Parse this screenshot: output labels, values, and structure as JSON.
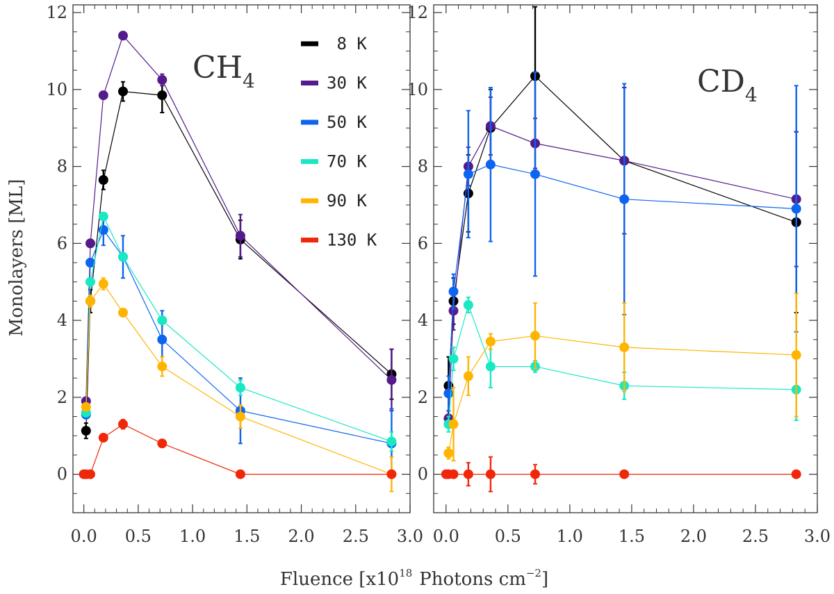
{
  "chart_data": {
    "type": "line",
    "xlabel": "Fluence [x10",
    "xlabel_exponent": "18",
    "xlabel_unit": "Photons cm",
    "xlabel_unit_exponent": "−2",
    "xlabel_end": "]",
    "ylabel": "Monolayers [ML]",
    "xlim": [
      -0.1,
      3.0
    ],
    "ylim": [
      -1,
      12.2
    ],
    "x_ticks": [
      "0.0",
      "0.5",
      "1.0",
      "1.5",
      "2.0",
      "2.5",
      "3.0"
    ],
    "x_tick_values": [
      0,
      0.5,
      1.0,
      1.5,
      2.0,
      2.5,
      3.0
    ],
    "y_ticks": [
      "0",
      "2",
      "4",
      "6",
      "8",
      "10",
      "12"
    ],
    "y_tick_values": [
      0,
      2,
      4,
      6,
      8,
      10,
      12
    ],
    "legend": [
      {
        "label": " 8 K",
        "color": "#000000"
      },
      {
        "label": "30 K",
        "color": "#551a8b"
      },
      {
        "label": "50 K",
        "color": "#0c64f0"
      },
      {
        "label": "70 K",
        "color": "#19e8c3"
      },
      {
        "label": "90 K",
        "color": "#ffb400"
      },
      {
        "label": "130 K",
        "color": "#f0280a"
      }
    ],
    "panels": [
      {
        "title": "CH",
        "title_sub": "4",
        "series": [
          {
            "name": "8 K",
            "color": "#000000",
            "x": [
              0.02,
              0.06,
              0.18,
              0.36,
              0.72,
              1.44,
              2.83
            ],
            "y": [
              1.13,
              4.5,
              7.65,
              9.95,
              9.85,
              6.1,
              2.6
            ],
            "err": [
              0.2,
              0.3,
              0.25,
              0.25,
              0.45,
              0.5,
              0.65
            ]
          },
          {
            "name": "30 K",
            "color": "#551a8b",
            "x": [
              0.02,
              0.06,
              0.18,
              0.36,
              0.72,
              1.44,
              2.83
            ],
            "y": [
              1.9,
              6.0,
              9.85,
              11.4,
              10.25,
              6.2,
              2.45
            ],
            "err": [
              0.1,
              0.1,
              0.1,
              0.1,
              0.15,
              0.55,
              0.8
            ]
          },
          {
            "name": "50 K",
            "color": "#0c64f0",
            "x": [
              0.02,
              0.06,
              0.18,
              0.36,
              0.72,
              1.44,
              2.83
            ],
            "y": [
              1.55,
              5.5,
              6.35,
              5.65,
              3.5,
              1.65,
              0.8
            ],
            "err": [
              0.1,
              0.1,
              0.4,
              0.55,
              0.75,
              0.85,
              0.9
            ]
          },
          {
            "name": "70 K",
            "color": "#19e8c3",
            "x": [
              0.02,
              0.06,
              0.18,
              0.36,
              0.72,
              1.44,
              2.83
            ],
            "y": [
              1.6,
              5.0,
              6.7,
              5.65,
              4.0,
              2.25,
              0.85
            ],
            "err": [
              0.1,
              0.1,
              0.1,
              0.1,
              0.1,
              0.2,
              0.25
            ]
          },
          {
            "name": "90 K",
            "color": "#ffb400",
            "x": [
              0.02,
              0.06,
              0.18,
              0.36,
              0.72,
              1.44,
              2.83
            ],
            "y": [
              1.75,
              4.5,
              4.95,
              4.2,
              2.8,
              1.5,
              0.0
            ],
            "err": [
              0.1,
              0.15,
              0.15,
              0.1,
              0.25,
              0.3,
              0.45
            ]
          },
          {
            "name": "130 K",
            "color": "#f0280a",
            "x": [
              0.0,
              0.02,
              0.06,
              0.18,
              0.36,
              0.72,
              1.44,
              2.83
            ],
            "y": [
              0.0,
              0.0,
              0.0,
              0.95,
              1.3,
              0.8,
              0.0,
              0.0
            ],
            "err": [
              0.05,
              0.05,
              0.05,
              0.08,
              0.12,
              0.08,
              0.05,
              0.05
            ]
          }
        ]
      },
      {
        "title": "CD",
        "title_sub": "4",
        "series": [
          {
            "name": "8 K",
            "color": "#000000",
            "x": [
              0.02,
              0.06,
              0.18,
              0.36,
              0.72,
              1.44,
              2.83
            ],
            "y": [
              2.3,
              4.5,
              7.3,
              9.0,
              10.35,
              8.15,
              6.55
            ],
            "err": [
              0.75,
              0.6,
              1.0,
              1.0,
              1.8,
              1.9,
              2.35
            ]
          },
          {
            "name": "30 K",
            "color": "#551a8b",
            "x": [
              0.02,
              0.06,
              0.18,
              0.36,
              0.72,
              1.44,
              2.83
            ],
            "y": [
              1.45,
              4.25,
              8.0,
              9.05,
              8.6,
              8.15,
              7.15
            ],
            "err": [
              0.2,
              0.5,
              0.5,
              0.75,
              0.65,
              1.9,
              1.75
            ]
          },
          {
            "name": "50 K",
            "color": "#0c64f0",
            "x": [
              0.02,
              0.06,
              0.18,
              0.36,
              0.72,
              1.44,
              2.83
            ],
            "y": [
              2.1,
              4.75,
              7.8,
              8.05,
              7.8,
              7.15,
              6.9
            ],
            "err": [
              0.45,
              0.45,
              1.65,
              2.0,
              2.65,
              3.0,
              3.2
            ]
          },
          {
            "name": "70 K",
            "color": "#19e8c3",
            "x": [
              0.02,
              0.06,
              0.18,
              0.36,
              0.72,
              1.44,
              2.83
            ],
            "y": [
              1.3,
              3.0,
              4.4,
              2.8,
              2.8,
              2.3,
              2.2
            ],
            "err": [
              0.2,
              0.3,
              0.2,
              0.55,
              0.15,
              0.35,
              0.8
            ]
          },
          {
            "name": "90 K",
            "color": "#ffb400",
            "x": [
              0.02,
              0.06,
              0.18,
              0.36,
              0.72,
              1.44,
              2.83
            ],
            "y": [
              0.55,
              1.3,
              2.55,
              3.45,
              3.6,
              3.3,
              3.1
            ],
            "err": [
              0.15,
              0.95,
              0.5,
              0.2,
              0.85,
              1.15,
              1.6
            ]
          },
          {
            "name": "130 K",
            "color": "#f0280a",
            "x": [
              0.0,
              0.02,
              0.06,
              0.18,
              0.36,
              0.72,
              1.44,
              2.83
            ],
            "y": [
              0.0,
              0.0,
              0.0,
              0.0,
              0.0,
              0.0,
              0.0,
              0.0
            ],
            "err": [
              0.05,
              0.05,
              0.05,
              0.3,
              0.45,
              0.25,
              0.05,
              0.05
            ]
          }
        ]
      }
    ]
  }
}
